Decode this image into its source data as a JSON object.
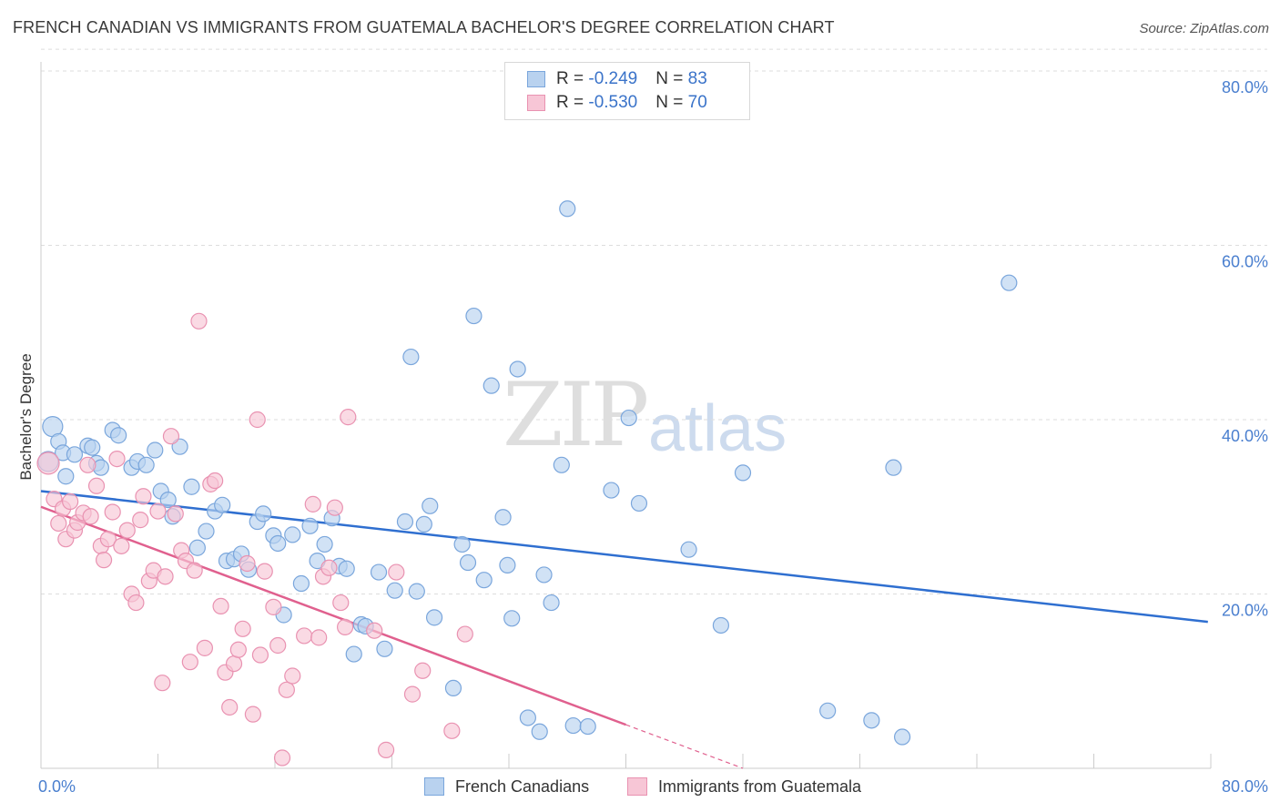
{
  "title": "FRENCH CANADIAN VS IMMIGRANTS FROM GUATEMALA BACHELOR'S DEGREE CORRELATION CHART",
  "source": "Source: ZipAtlas.com",
  "watermark": {
    "zip": "ZIP",
    "atlas": "atlas"
  },
  "legend": {
    "rows": [
      {
        "r_label": "R = ",
        "r_value": "-0.249",
        "n_label": "N = ",
        "n_value": "83"
      },
      {
        "r_label": "R = ",
        "r_value": "-0.530",
        "n_label": "N = ",
        "n_value": "70"
      }
    ]
  },
  "bottom_legend": [
    "French Canadians",
    "Immigrants from Guatemala"
  ],
  "colors": {
    "blue_fill": "#b9d2ef",
    "blue_stroke": "#7aa6dc",
    "blue_line": "#2f6fd0",
    "pink_fill": "#f7c6d6",
    "pink_stroke": "#e992b1",
    "pink_line": "#e0608e",
    "grid": "#dddddd",
    "tick_text": "#4a7fcf"
  },
  "chart_data": {
    "type": "scatter",
    "title": "FRENCH CANADIAN VS IMMIGRANTS FROM GUATEMALA BACHELOR'S DEGREE CORRELATION CHART",
    "xlabel": "",
    "ylabel": "Bachelor's Degree",
    "xlim": [
      0,
      80
    ],
    "ylim": [
      0,
      80
    ],
    "x_tick_labels": [
      "0.0%",
      "80.0%"
    ],
    "y_tick_labels": [
      "20.0%",
      "40.0%",
      "60.0%",
      "80.0%"
    ],
    "y_ticks": [
      20,
      40,
      60,
      80
    ],
    "series": [
      {
        "name": "French Canadians",
        "r": -0.249,
        "n": 83,
        "trend": {
          "x": [
            0,
            79.8
          ],
          "y": [
            31.8,
            16.8
          ]
        },
        "points": [
          [
            0.5,
            35.2
          ],
          [
            0.8,
            39.2
          ],
          [
            1.2,
            37.5
          ],
          [
            1.5,
            36.2
          ],
          [
            1.7,
            33.5
          ],
          [
            2.3,
            36.0
          ],
          [
            3.2,
            37.0
          ],
          [
            3.5,
            36.8
          ],
          [
            3.8,
            35.0
          ],
          [
            4.1,
            34.5
          ],
          [
            4.9,
            38.8
          ],
          [
            5.3,
            38.2
          ],
          [
            6.2,
            34.5
          ],
          [
            6.6,
            35.2
          ],
          [
            7.2,
            34.8
          ],
          [
            7.8,
            36.5
          ],
          [
            8.2,
            31.8
          ],
          [
            8.7,
            30.8
          ],
          [
            9.0,
            28.9
          ],
          [
            9.5,
            36.9
          ],
          [
            10.3,
            32.3
          ],
          [
            10.7,
            25.3
          ],
          [
            11.3,
            27.2
          ],
          [
            11.9,
            29.5
          ],
          [
            12.4,
            30.2
          ],
          [
            12.7,
            23.8
          ],
          [
            13.2,
            24.0
          ],
          [
            13.7,
            24.6
          ],
          [
            14.2,
            22.8
          ],
          [
            14.8,
            28.3
          ],
          [
            15.2,
            29.2
          ],
          [
            15.9,
            26.7
          ],
          [
            16.2,
            25.8
          ],
          [
            16.6,
            17.6
          ],
          [
            17.2,
            26.8
          ],
          [
            17.8,
            21.2
          ],
          [
            18.4,
            27.8
          ],
          [
            18.9,
            23.8
          ],
          [
            19.4,
            25.7
          ],
          [
            19.9,
            28.7
          ],
          [
            20.4,
            23.2
          ],
          [
            20.9,
            22.9
          ],
          [
            21.4,
            13.1
          ],
          [
            21.9,
            16.5
          ],
          [
            22.2,
            16.3
          ],
          [
            23.1,
            22.5
          ],
          [
            23.5,
            13.7
          ],
          [
            24.2,
            20.4
          ],
          [
            24.9,
            28.3
          ],
          [
            25.3,
            47.2
          ],
          [
            25.7,
            20.3
          ],
          [
            26.2,
            28.0
          ],
          [
            26.6,
            30.1
          ],
          [
            26.9,
            17.3
          ],
          [
            28.2,
            9.2
          ],
          [
            28.8,
            25.7
          ],
          [
            29.2,
            23.6
          ],
          [
            29.6,
            51.9
          ],
          [
            30.3,
            21.6
          ],
          [
            30.8,
            43.9
          ],
          [
            31.6,
            28.8
          ],
          [
            31.9,
            23.3
          ],
          [
            32.2,
            17.2
          ],
          [
            32.6,
            45.8
          ],
          [
            33.3,
            5.8
          ],
          [
            34.1,
            4.2
          ],
          [
            34.4,
            22.2
          ],
          [
            34.9,
            19.0
          ],
          [
            35.6,
            34.8
          ],
          [
            36.0,
            64.2
          ],
          [
            36.4,
            4.9
          ],
          [
            37.4,
            4.8
          ],
          [
            39.0,
            31.9
          ],
          [
            40.2,
            40.2
          ],
          [
            40.9,
            30.4
          ],
          [
            44.3,
            25.1
          ],
          [
            46.5,
            16.4
          ],
          [
            48.0,
            33.9
          ],
          [
            53.8,
            6.6
          ],
          [
            56.8,
            5.5
          ],
          [
            58.3,
            34.5
          ],
          [
            58.9,
            3.6
          ],
          [
            66.2,
            55.7
          ]
        ]
      },
      {
        "name": "Immigrants from Guatemala",
        "r": -0.53,
        "n": 70,
        "trend": {
          "x": [
            0,
            40
          ],
          "y": [
            30.0,
            5.0
          ]
        },
        "trend_dashed": {
          "x": [
            40,
            48
          ],
          "y": [
            5.0,
            0.0
          ]
        },
        "points": [
          [
            0.5,
            35.0
          ],
          [
            0.9,
            30.9
          ],
          [
            1.2,
            28.1
          ],
          [
            1.5,
            29.8
          ],
          [
            1.7,
            26.3
          ],
          [
            2.0,
            30.6
          ],
          [
            2.3,
            27.3
          ],
          [
            2.5,
            28.2
          ],
          [
            2.9,
            29.3
          ],
          [
            3.2,
            34.8
          ],
          [
            3.4,
            28.9
          ],
          [
            3.8,
            32.4
          ],
          [
            4.1,
            25.5
          ],
          [
            4.3,
            23.9
          ],
          [
            4.6,
            26.3
          ],
          [
            4.9,
            29.4
          ],
          [
            5.2,
            35.5
          ],
          [
            5.5,
            25.5
          ],
          [
            5.9,
            27.3
          ],
          [
            6.2,
            20.0
          ],
          [
            6.5,
            19.0
          ],
          [
            6.8,
            28.5
          ],
          [
            7.0,
            31.2
          ],
          [
            7.4,
            21.5
          ],
          [
            7.7,
            22.7
          ],
          [
            8.0,
            29.5
          ],
          [
            8.3,
            9.8
          ],
          [
            8.5,
            22.0
          ],
          [
            8.9,
            38.1
          ],
          [
            9.2,
            29.2
          ],
          [
            9.6,
            25.0
          ],
          [
            9.9,
            23.8
          ],
          [
            10.2,
            12.2
          ],
          [
            10.5,
            22.7
          ],
          [
            10.8,
            51.3
          ],
          [
            11.2,
            13.8
          ],
          [
            11.6,
            32.6
          ],
          [
            11.9,
            33.0
          ],
          [
            12.3,
            18.6
          ],
          [
            12.6,
            11.0
          ],
          [
            12.9,
            7.0
          ],
          [
            13.2,
            12.0
          ],
          [
            13.5,
            13.6
          ],
          [
            13.8,
            16.0
          ],
          [
            14.1,
            23.5
          ],
          [
            14.5,
            6.2
          ],
          [
            14.8,
            40.0
          ],
          [
            15.0,
            13.0
          ],
          [
            15.3,
            22.6
          ],
          [
            15.9,
            18.5
          ],
          [
            16.2,
            14.1
          ],
          [
            16.5,
            1.2
          ],
          [
            16.8,
            9.0
          ],
          [
            17.2,
            10.6
          ],
          [
            18.0,
            15.2
          ],
          [
            18.6,
            30.3
          ],
          [
            19.0,
            15.0
          ],
          [
            19.3,
            22.0
          ],
          [
            19.7,
            23.0
          ],
          [
            20.1,
            29.9
          ],
          [
            20.5,
            19.0
          ],
          [
            20.8,
            16.2
          ],
          [
            21.0,
            40.3
          ],
          [
            22.8,
            15.8
          ],
          [
            23.6,
            2.1
          ],
          [
            24.3,
            22.5
          ],
          [
            25.4,
            8.5
          ],
          [
            26.1,
            11.2
          ],
          [
            28.1,
            4.3
          ],
          [
            29.0,
            15.4
          ]
        ]
      }
    ]
  }
}
